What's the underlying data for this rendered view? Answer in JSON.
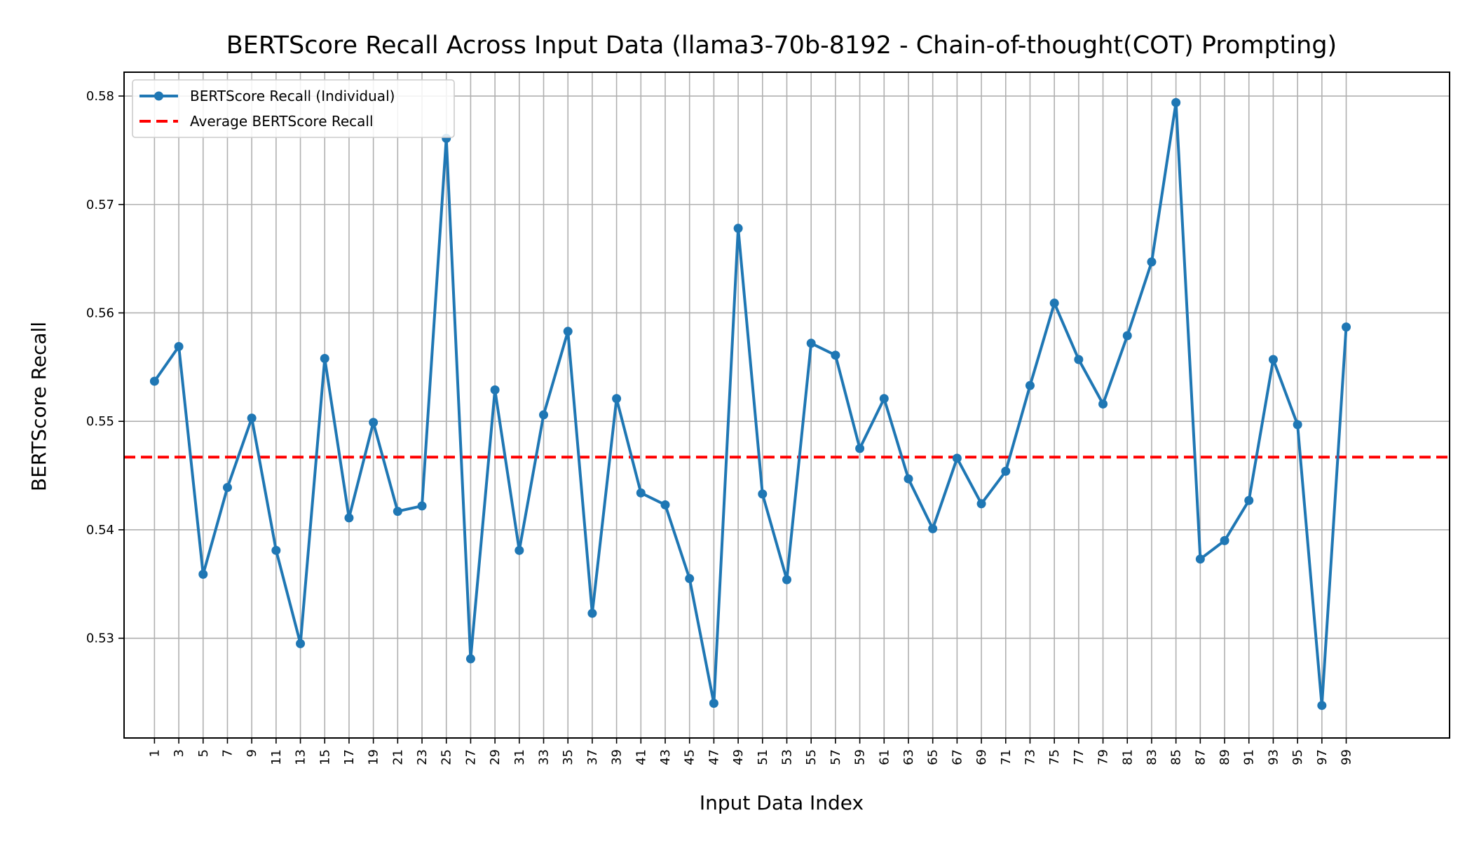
{
  "chart_data": {
    "type": "line",
    "title": "BERTScore Recall Across Input Data (llama3-70b-8192 - Chain-of-thought(COT) Prompting)",
    "xlabel": "Input Data Index",
    "ylabel": "BERTScore Recall",
    "xlim": [
      -1.5,
      107.5
    ],
    "ylim": [
      0.5208,
      0.5822
    ],
    "x_ticks": [
      1,
      3,
      5,
      7,
      9,
      11,
      13,
      15,
      17,
      19,
      21,
      23,
      25,
      27,
      29,
      31,
      33,
      35,
      37,
      39,
      41,
      43,
      45,
      47,
      49,
      51,
      53,
      55,
      57,
      59,
      61,
      63,
      65,
      67,
      69,
      71,
      73,
      75,
      77,
      79,
      81,
      83,
      85,
      87,
      89,
      91,
      93,
      95,
      97,
      99
    ],
    "x_tick_labels": [
      "1",
      "3",
      "5",
      "7",
      "9",
      "11",
      "13",
      "15",
      "17",
      "19",
      "21",
      "23",
      "25",
      "27",
      "29",
      "31",
      "33",
      "35",
      "37",
      "39",
      "41",
      "43",
      "45",
      "47",
      "49",
      "51",
      "53",
      "55",
      "57",
      "59",
      "61",
      "63",
      "65",
      "67",
      "69",
      "71",
      "73",
      "75",
      "77",
      "79",
      "81",
      "83",
      "85",
      "87",
      "89",
      "91",
      "93",
      "95",
      "97",
      "99"
    ],
    "y_ticks": [
      0.53,
      0.54,
      0.55,
      0.56,
      0.57,
      0.58
    ],
    "y_tick_labels": [
      "0.53",
      "0.54",
      "0.55",
      "0.56",
      "0.57",
      "0.58"
    ],
    "grid": true,
    "legend_position": "top-left",
    "series": [
      {
        "name": "BERTScore Recall (Individual)",
        "color": "#1f77b4",
        "style": "solid-line-with-circle-markers",
        "x": [
          1,
          3,
          5,
          7,
          9,
          11,
          13,
          15,
          17,
          19,
          21,
          23,
          25,
          27,
          29,
          31,
          33,
          35,
          37,
          39,
          41,
          43,
          45,
          47,
          49,
          51,
          53,
          55,
          57,
          59,
          61,
          63,
          65,
          67,
          69,
          71,
          73,
          75,
          77,
          79,
          81,
          83,
          85,
          87,
          89,
          91,
          93,
          95,
          97,
          99
        ],
        "values": [
          0.5537,
          0.5569,
          0.5359,
          0.5439,
          0.5503,
          0.5381,
          0.5295,
          0.5558,
          0.5411,
          0.5499,
          0.5417,
          0.5422,
          0.5761,
          0.5281,
          0.5529,
          0.5381,
          0.5506,
          0.5583,
          0.5323,
          0.5521,
          0.5434,
          0.5423,
          0.5355,
          0.524,
          0.5678,
          0.5433,
          0.5354,
          0.5572,
          0.5561,
          0.5475,
          0.5521,
          0.5447,
          0.5401,
          0.5466,
          0.5424,
          0.5454,
          0.5533,
          0.5609,
          0.5557,
          0.5516,
          0.5579,
          0.5647,
          0.5794,
          0.5373,
          0.539,
          0.5427,
          0.5557,
          0.5497,
          0.5238,
          0.5587
        ]
      },
      {
        "name": "Average BERTScore Recall",
        "color": "#ff0000",
        "style": "dashed-horizontal-line",
        "value": 0.5467
      }
    ]
  }
}
